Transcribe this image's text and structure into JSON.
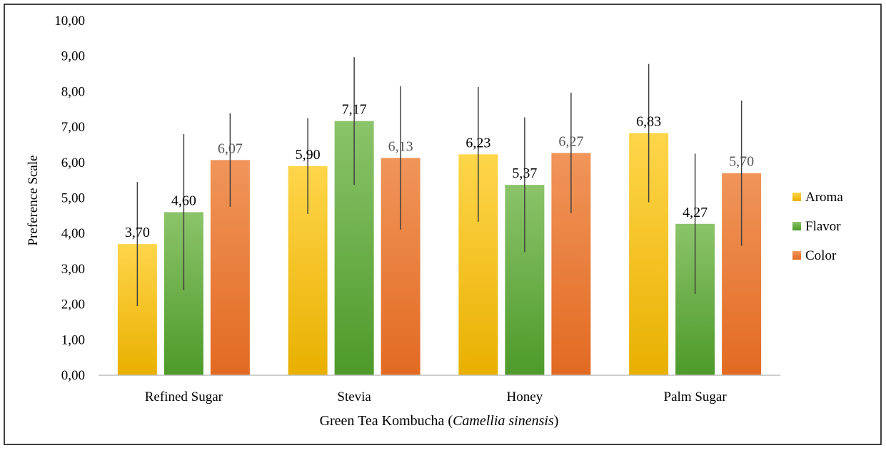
{
  "chart_data": {
    "type": "bar",
    "xlabel": "Green Tea Kombucha (",
    "xlabel_italic": "Camellia sinensis",
    "xlabel_end": ")",
    "ylabel": "Preference Scale",
    "ylim": [
      0,
      10
    ],
    "yticks": [
      "0,00",
      "1,00",
      "2,00",
      "3,00",
      "4,00",
      "5,00",
      "6,00",
      "7,00",
      "8,00",
      "9,00",
      "10,00"
    ],
    "categories": [
      "Refined Sugar",
      "Stevia",
      "Honey",
      "Palm Sugar"
    ],
    "legend_position": "right",
    "grid": false,
    "series": [
      {
        "name": "Aroma",
        "color_top": "#ffd54a",
        "color_bottom": "#e8b000",
        "values": [
          3.7,
          5.9,
          6.23,
          6.83
        ],
        "labels": [
          "3,70",
          "5,90",
          "6,23",
          "6,83"
        ],
        "error": [
          1.75,
          1.35,
          1.9,
          1.95
        ]
      },
      {
        "name": "Flavor",
        "color_top": "#8bc46a",
        "color_bottom": "#4d9a2a",
        "values": [
          4.6,
          7.17,
          5.37,
          4.27
        ],
        "labels": [
          "4,60",
          "7,17",
          "5,37",
          "4,27"
        ],
        "error": [
          2.2,
          1.8,
          1.9,
          1.98
        ]
      },
      {
        "name": "Color",
        "color_top": "#f0955a",
        "color_bottom": "#e26a22",
        "values": [
          6.07,
          6.13,
          6.27,
          5.7
        ],
        "labels": [
          "6,07",
          "6,13",
          "6,27",
          "5,70"
        ],
        "error": [
          1.32,
          2.02,
          1.7,
          2.05
        ]
      }
    ]
  }
}
